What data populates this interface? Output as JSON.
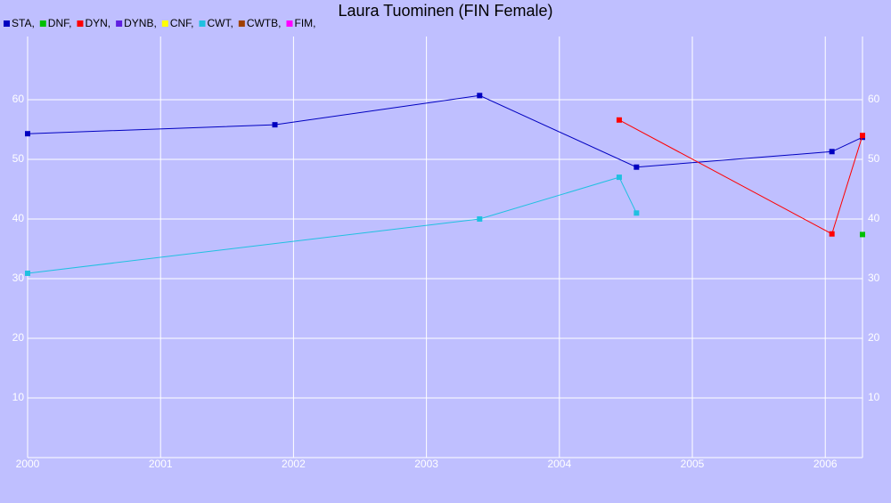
{
  "chart_data": {
    "type": "line",
    "title": "Laura Tuominen (FIN Female)",
    "xlim": [
      2000,
      2006.28
    ],
    "xticks": [
      2000,
      2001,
      2002,
      2003,
      2004,
      2005,
      2006
    ],
    "ylim": [
      0,
      70
    ],
    "yticks": [
      10,
      20,
      30,
      40,
      50,
      60
    ],
    "grid": true,
    "series": [
      {
        "name": "STA,",
        "color": "#0000c0",
        "x": [
          2000.0,
          2001.86,
          2003.4,
          2004.58,
          2006.05,
          2006.28
        ],
        "values": [
          54.3,
          55.8,
          60.7,
          48.7,
          51.3,
          53.7
        ]
      },
      {
        "name": "DNF,",
        "color": "#00c000",
        "x": [
          2006.28
        ],
        "values": [
          37.4
        ]
      },
      {
        "name": "DYN,",
        "color": "#ff0000",
        "x": [
          2004.45,
          2006.05,
          2006.28
        ],
        "values": [
          56.6,
          37.5,
          54.0
        ]
      },
      {
        "name": "DYNB,",
        "color": "#6020e0",
        "x": [],
        "values": []
      },
      {
        "name": "CNF,",
        "color": "#ffff00",
        "x": [],
        "values": []
      },
      {
        "name": "CWT,",
        "color": "#20c0e0",
        "x": [
          2000.0,
          2003.4,
          2004.45,
          2004.58
        ],
        "values": [
          30.9,
          40.0,
          47.0,
          41.0
        ]
      },
      {
        "name": "CWTB,",
        "color": "#a04000",
        "x": [],
        "values": []
      },
      {
        "name": "FIM,",
        "color": "#ff00ff",
        "x": [],
        "values": []
      }
    ]
  }
}
